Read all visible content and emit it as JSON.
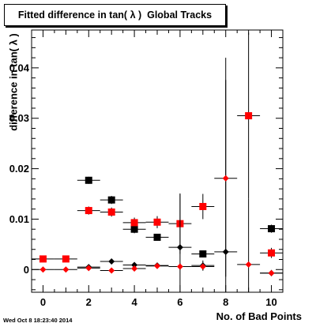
{
  "title": "Fitted difference in tan( λ )  Global Tracks",
  "timestamp": "Wed Oct  8 18:23:40 2014",
  "colors": {
    "black": "#000000",
    "red": "#ff0000"
  },
  "chart_data": {
    "type": "scatter",
    "title": "Fitted difference in tan( λ )  Global Tracks",
    "xlabel": "No. of Bad Points",
    "ylabel": "difference in tan( λ )",
    "xlim": [
      -0.5,
      10.5
    ],
    "ylim": [
      -0.0045,
      0.0475
    ],
    "x_ticks": [
      0,
      2,
      4,
      6,
      8,
      10
    ],
    "y_ticks": [
      0,
      0.01,
      0.02,
      0.03,
      0.04
    ],
    "y_tick_labels": [
      "0",
      "0.01",
      "0.02",
      "0.03",
      "0.04"
    ],
    "grid": false,
    "series": [
      {
        "marker": "square",
        "color": "#000000",
        "points": [
          {
            "x": 2,
            "y": 0.0177,
            "xerr": 0.5,
            "yerr": 0.0007
          },
          {
            "x": 3,
            "y": 0.0138,
            "xerr": 0.5,
            "yerr": 0.0008
          },
          {
            "x": 4,
            "y": 0.008,
            "xerr": 0.5,
            "yerr": 0.0008
          },
          {
            "x": 5,
            "y": 0.0064,
            "xerr": 0.5,
            "yerr": 0.0006
          },
          {
            "x": 7,
            "y": 0.0031,
            "xerr": 0.5,
            "yerr": 0.0007
          },
          {
            "x": 10,
            "y": 0.0081,
            "xerr": 0.5,
            "yerr": 0.0008
          }
        ]
      },
      {
        "marker": "square",
        "color": "#ff0000",
        "points": [
          {
            "x": 0,
            "y": 0.0021,
            "xerr": 0.5,
            "yerr": 0.0003
          },
          {
            "x": 1,
            "y": 0.0021,
            "xerr": 0.5,
            "yerr": 0.0003
          },
          {
            "x": 2,
            "y": 0.0117,
            "xerr": 0.5,
            "yerr": 0.0008
          },
          {
            "x": 3,
            "y": 0.0114,
            "xerr": 0.5,
            "yerr": 0.0009
          },
          {
            "x": 4,
            "y": 0.0093,
            "xerr": 0.5,
            "yerr": 0.001
          },
          {
            "x": 5,
            "y": 0.0094,
            "xerr": 0.5,
            "yerr": 0.0012
          },
          {
            "x": 6,
            "y": 0.0091,
            "xerr": 0.5,
            "yerr": 0.006
          },
          {
            "x": 7,
            "y": 0.0125,
            "xerr": 0.5,
            "yerr": 0.0025
          },
          {
            "x": 9,
            "y": 0.0305,
            "xerr": 0.5,
            "yerr": 0.0165
          },
          {
            "x": 10,
            "y": 0.0033,
            "xerr": 0.5,
            "yerr": 0.001
          }
        ]
      },
      {
        "marker": "diamond",
        "color": "#000000",
        "points": [
          {
            "x": 2,
            "y": 0.0005,
            "xerr": 0.5,
            "yerr": 0.0003
          },
          {
            "x": 3,
            "y": 0.0016,
            "xerr": 0.5,
            "yerr": 0.0003
          },
          {
            "x": 4,
            "y": 0.0009,
            "xerr": 0.5,
            "yerr": 0.0003
          },
          {
            "x": 5,
            "y": 0.0008,
            "xerr": 0.5,
            "yerr": 0.0004
          },
          {
            "x": 6,
            "y": 0.0044,
            "xerr": 0.5,
            "yerr": 0.0105
          },
          {
            "x": 7,
            "y": 0.0008,
            "xerr": 0.5,
            "yerr": 0.001
          },
          {
            "x": 8,
            "y": 0.0035,
            "xerr": 0.5,
            "yerr": 0.0385
          },
          {
            "x": 10,
            "y": -0.0007,
            "xerr": 0.5,
            "yerr": 0.0006
          }
        ]
      },
      {
        "marker": "diamond",
        "color": "#ff0000",
        "points": [
          {
            "x": 0,
            "y": 0.0,
            "xerr": 0.5,
            "yerr": 0.0001
          },
          {
            "x": 1,
            "y": 0.0,
            "xerr": 0.5,
            "yerr": 0.0001
          },
          {
            "x": 2,
            "y": 0.0003,
            "xerr": 0.5,
            "yerr": 0.0002
          },
          {
            "x": 3,
            "y": -0.0002,
            "xerr": 0.5,
            "yerr": 0.0003
          },
          {
            "x": 4,
            "y": 0.0002,
            "xerr": 0.5,
            "yerr": 0.0003
          },
          {
            "x": 5,
            "y": 0.0007,
            "xerr": 0.5,
            "yerr": 0.0004
          },
          {
            "x": 6,
            "y": 0.0006,
            "xerr": 0.5,
            "yerr": 0.0007
          },
          {
            "x": 7,
            "y": 0.0006,
            "xerr": 0.5,
            "yerr": 0.0008
          },
          {
            "x": 8,
            "y": 0.0181,
            "xerr": 0.5,
            "yerr": 0.0195
          },
          {
            "x": 9,
            "y": 0.001,
            "xerr": 0.5,
            "yerr": 0.013
          },
          {
            "x": 10,
            "y": -0.0007,
            "xerr": 0.5,
            "yerr": 0.0006
          }
        ]
      }
    ]
  }
}
